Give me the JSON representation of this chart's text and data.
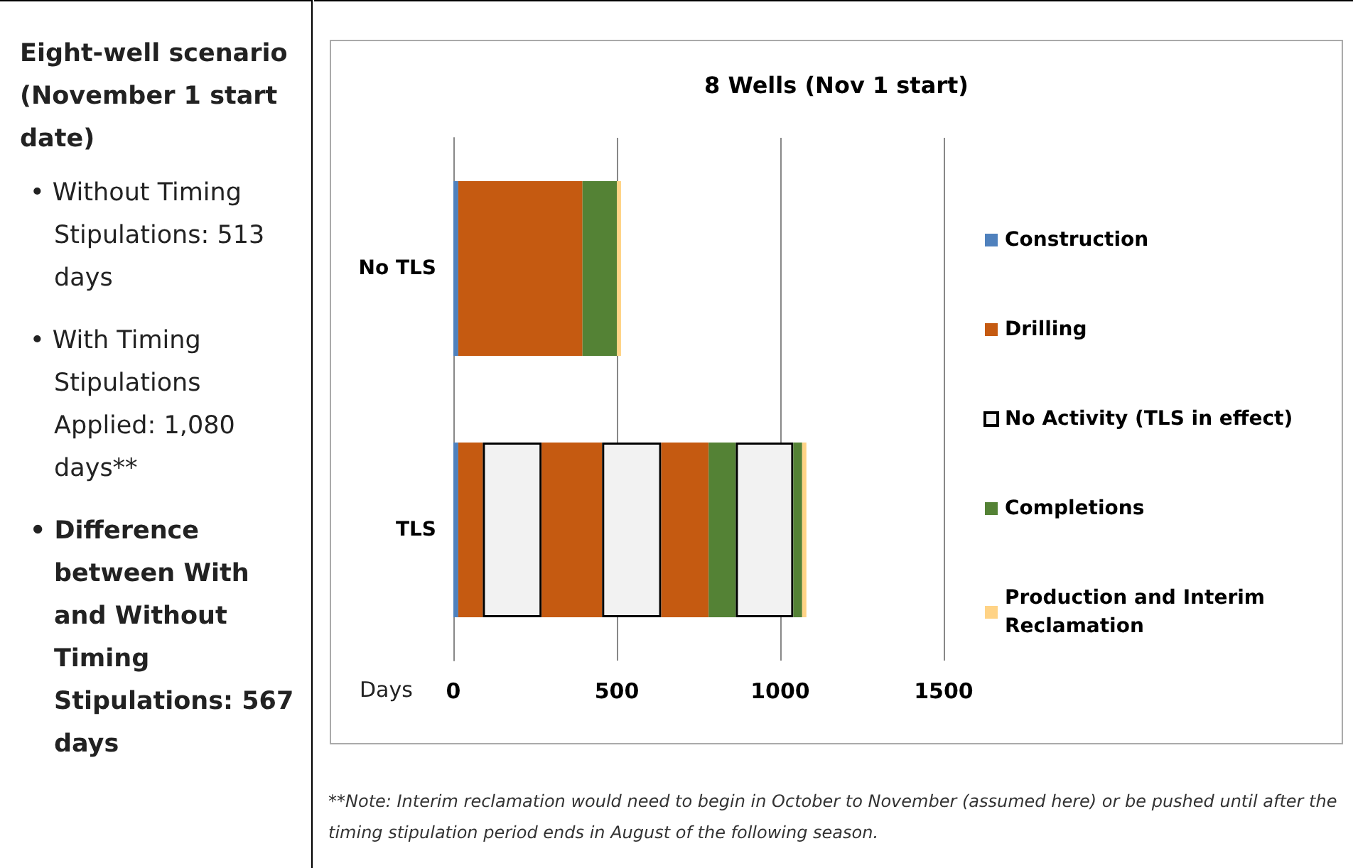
{
  "chart_data": [
    {
      "type": "other",
      "title": "Eight-well scenario (November 1 start date)",
      "annotations": [
        "• Without Timing Stipulations: 513 days",
        "• With Timing Stipulations Applied: 1,080 days**",
        "• Difference between With and Without Timing Stipulations: 567 days"
      ]
    },
    {
      "type": "bar",
      "orientation": "horizontal",
      "stacked": true,
      "title": "8 Wells (Nov 1 start)",
      "xlabel": "Days",
      "categories": [
        "No TLS",
        "TLS"
      ],
      "xlim": [
        0,
        1500
      ],
      "xticks": [
        0,
        500,
        1000,
        1500
      ],
      "grid": "x",
      "legend": "right",
      "series": [
        {
          "name": "Construction",
          "color": "#4f81bd",
          "values": [
            15,
            15
          ]
        },
        {
          "name": "Drilling",
          "color": "#c55a11",
          "values": [
            380,
            75
          ]
        },
        {
          "name": "No Activity (TLS in effect)",
          "color": "#f2f2f2",
          "values": [
            null,
            180
          ]
        },
        {
          "color": "#c55a11",
          "values": [
            null,
            185
          ]
        },
        {
          "color": "#f2f2f2",
          "values": [
            null,
            181
          ]
        },
        {
          "color": "#c55a11",
          "values": [
            null,
            145
          ]
        },
        {
          "name": "Completions",
          "color": "#548235",
          "values": [
            105,
            83
          ]
        },
        {
          "color": "#f2f2f2",
          "values": [
            null,
            176
          ]
        },
        {
          "color": "#548235",
          "values": [
            null,
            27
          ]
        },
        {
          "name": "Production and Interim Reclamation",
          "color": "#ffd386",
          "values": [
            13,
            13
          ]
        }
      ],
      "annotations": [
        "**Note: Interim reclamation would need to begin in October to November (assumed here) or be pushed until after the timing stipulation period ends in August of the following season."
      ]
    }
  ]
}
